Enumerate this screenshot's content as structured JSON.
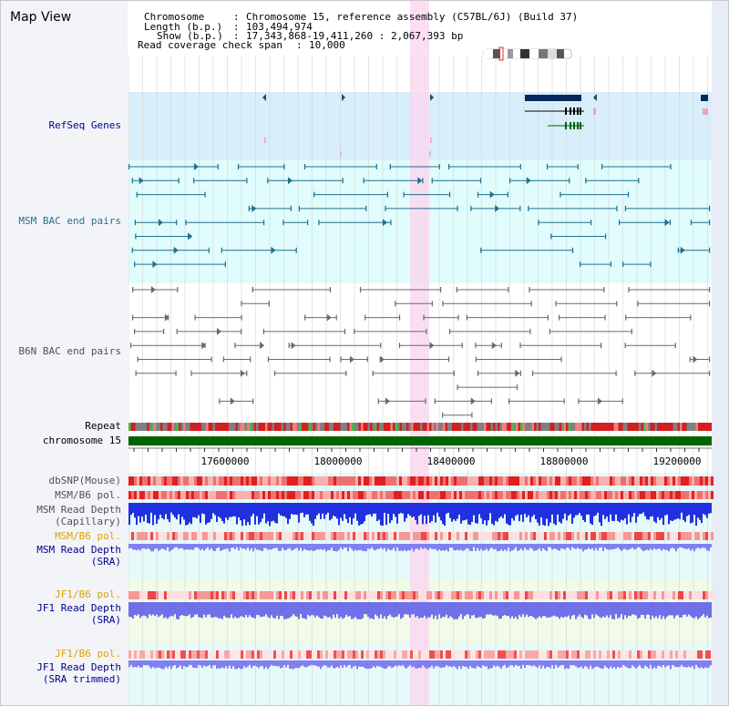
{
  "title": "Map View",
  "header": {
    "chromosome_label": "Chromosome",
    "chromosome_value": "Chromosome 15, reference assembly (C57BL/6J) (Build 37)",
    "length_label": "Length (b.p.)",
    "length_value": "103,494,974",
    "show_label": "Show (b.p.)",
    "show_value": "17,343,868-19,411,260 : 2,067,393 bp",
    "coverage_label": "Read coverage check span",
    "coverage_value": "10,000",
    "sep": ":"
  },
  "tracks": {
    "refseq": "RefSeq Genes",
    "msm_bac": "MSM BAC end pairs",
    "b6n_bac": "B6N BAC end pairs",
    "repeat": "Repeat",
    "chromosome": "chromosome 15",
    "dbsnp": "dbSNP(Mouse)",
    "msm_b6_pol_1": "MSM/B6 pol.",
    "msm_depth_cap_1": "MSM Read Depth",
    "msm_depth_cap_2": "(Capillary)",
    "msm_b6_pol_2": "MSM/B6 pol.",
    "msm_depth_sra_1": "MSM Read Depth",
    "msm_depth_sra_2": "(SRA)",
    "jf1_b6_pol_1": "JF1/B6 pol.",
    "jf1_depth_1": "JF1 Read Depth",
    "jf1_depth_2": "(SRA)",
    "jf1_b6_pol_2": "JF1/B6 pol.",
    "jf1_depth_trim_1": "JF1 Read Depth",
    "jf1_depth_trim_2": "(SRA trimmed)"
  },
  "axis": {
    "ticks": [
      "17600000",
      "18000000",
      "18400000",
      "18800000",
      "19200000"
    ]
  },
  "colors": {
    "refseq_bg": "#d8eefa",
    "bac_bg": "#e0fcfc",
    "msm_color": "#1f6f8f",
    "b6n_color": "#6a6a6a",
    "chromosome": "#006400",
    "highlight": "#f9d8f0",
    "label_blue": "#00008b",
    "label_orange": "#e0a000",
    "label_teal": "#2a7090",
    "label_gray": "#505050"
  }
}
